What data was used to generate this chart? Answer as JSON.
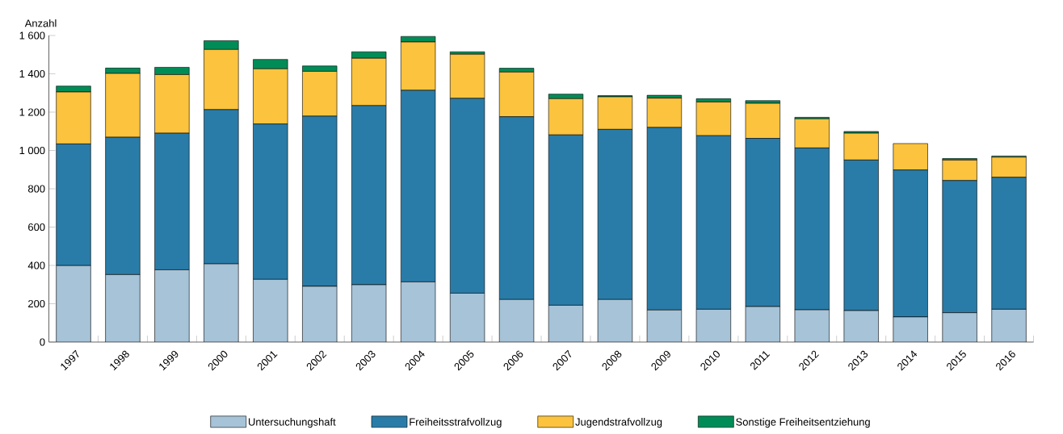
{
  "chart_data": {
    "type": "bar",
    "stacked": true,
    "ylabel": "Anzahl",
    "categories": [
      "1997",
      "1998",
      "1999",
      "2000",
      "2001",
      "2002",
      "2003",
      "2004",
      "2005",
      "2006",
      "2007",
      "2008",
      "2009",
      "2010",
      "2011",
      "2012",
      "2013",
      "2014",
      "2015",
      "2016"
    ],
    "series": [
      {
        "name": "Untersuchungshaft",
        "color": "#a6c3d8",
        "values": [
          399,
          352,
          377,
          408,
          327,
          291,
          299,
          314,
          255,
          222,
          192,
          222,
          167,
          171,
          185,
          168,
          164,
          131,
          153,
          171
        ]
      },
      {
        "name": "Freiheitsstrafvollzug",
        "color": "#2a7ca8",
        "values": [
          635,
          717,
          713,
          805,
          811,
          888,
          935,
          1000,
          1017,
          954,
          889,
          888,
          953,
          906,
          878,
          845,
          786,
          767,
          690,
          689
        ]
      },
      {
        "name": "Jugendstrafvollzug",
        "color": "#fbc33e",
        "values": [
          271,
          333,
          306,
          314,
          288,
          234,
          247,
          252,
          230,
          233,
          189,
          170,
          153,
          176,
          183,
          152,
          140,
          138,
          107,
          105
        ]
      },
      {
        "name": "Sonstige Freiheitsentziehung",
        "color": "#008c57",
        "values": [
          31,
          28,
          38,
          46,
          49,
          28,
          34,
          29,
          13,
          20,
          24,
          6,
          15,
          17,
          14,
          8,
          9,
          null,
          8,
          6
        ]
      }
    ],
    "ylim": [
      0,
      1600
    ],
    "yticks": [
      0,
      200,
      400,
      600,
      800,
      {
        "value": 1000,
        "label": "1 000"
      },
      {
        "value": 1200,
        "label": "1 200"
      },
      {
        "value": 1400,
        "label": "1 400"
      },
      {
        "value": 1600,
        "label": "1 600"
      }
    ],
    "legend": "bottom",
    "grid": false
  }
}
